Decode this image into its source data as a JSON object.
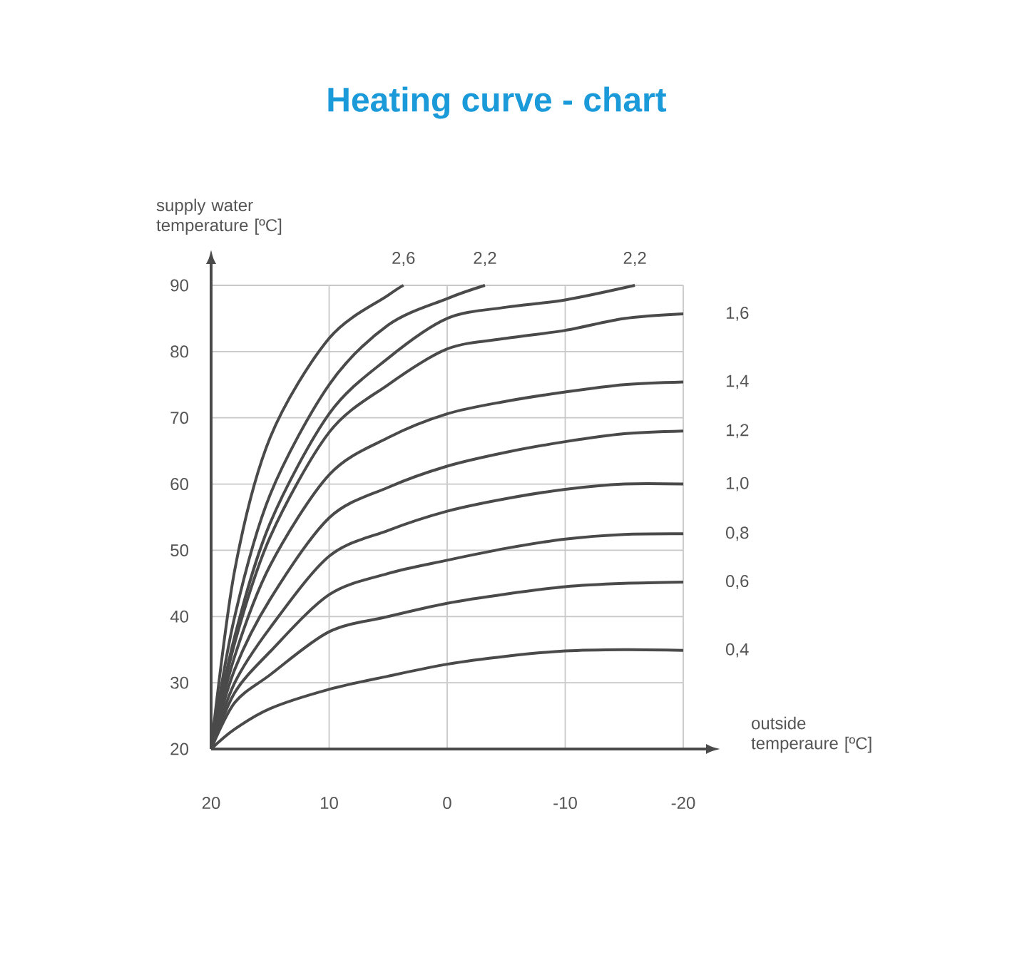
{
  "chart_data": {
    "type": "line",
    "title": "Heating curve - chart",
    "xlabel": "outside temperaure [ºC]",
    "ylabel": "supply water temperature [ºC]",
    "xlim": [
      20,
      -20
    ],
    "xticks": [
      20,
      10,
      0,
      -10,
      -20
    ],
    "ylim": [
      20,
      90
    ],
    "yticks": [
      20,
      30,
      40,
      50,
      60,
      70,
      80,
      90
    ],
    "grid": true,
    "marker": "none",
    "line_style": "solid",
    "series": [
      {
        "name": "2,6",
        "color": "#4a4a4a",
        "x": [
          20,
          18,
          15,
          10,
          5,
          3.7
        ],
        "values": [
          20,
          47,
          67,
          82,
          88.5,
          90
        ]
      },
      {
        "name": "2,2",
        "color": "#4a4a4a",
        "x": [
          20,
          18,
          15,
          10,
          5,
          0,
          -3.2
        ],
        "values": [
          20,
          40,
          58.4,
          75,
          84,
          88,
          90
        ]
      },
      {
        "name": "2,2",
        "color": "#4a4a4a",
        "x": [
          20,
          18,
          15,
          10,
          5,
          0,
          -5,
          -10,
          -15.9
        ],
        "values": [
          20,
          37,
          54.1,
          70.6,
          79,
          85,
          86.7,
          87.8,
          90
        ]
      },
      {
        "name": "1,6",
        "color": "#4a4a4a",
        "x": [
          20,
          18,
          15,
          10,
          5,
          0,
          -5,
          -10,
          -15,
          -20
        ],
        "values": [
          20,
          36,
          52,
          67.8,
          75,
          80.4,
          82,
          83.2,
          85,
          85.7
        ]
      },
      {
        "name": "1,4",
        "color": "#4a4a4a",
        "x": [
          20,
          18,
          15,
          10,
          5,
          0,
          -5,
          -10,
          -15,
          -20
        ],
        "values": [
          20,
          34,
          47.7,
          61.4,
          67,
          70.6,
          72.5,
          73.9,
          75,
          75.4
        ]
      },
      {
        "name": "1,2",
        "color": "#4a4a4a",
        "x": [
          20,
          18,
          15,
          10,
          5,
          0,
          -5,
          -10,
          -15,
          -20
        ],
        "values": [
          20,
          32,
          42.6,
          54.9,
          59.5,
          62.7,
          64.8,
          66.4,
          67.6,
          68
        ]
      },
      {
        "name": "1,0",
        "color": "#4a4a4a",
        "x": [
          20,
          18,
          15,
          10,
          5,
          0,
          -5,
          -10,
          -15,
          -20
        ],
        "values": [
          20,
          30,
          38.3,
          49.1,
          53,
          55.9,
          57.8,
          59.2,
          60,
          60
        ]
      },
      {
        "name": "0,8",
        "color": "#4a4a4a",
        "x": [
          20,
          18,
          15,
          10,
          5,
          0,
          -5,
          -10,
          -15,
          -20
        ],
        "values": [
          20,
          28.5,
          34.7,
          43.3,
          46.5,
          48.5,
          50.3,
          51.7,
          52.4,
          52.5
        ]
      },
      {
        "name": "0,6",
        "color": "#4a4a4a",
        "x": [
          20,
          18,
          15,
          10,
          5,
          0,
          -5,
          -10,
          -15,
          -20
        ],
        "values": [
          20,
          27,
          31.2,
          37.7,
          40,
          42,
          43.4,
          44.5,
          45,
          45.2
        ]
      },
      {
        "name": "0,4",
        "color": "#4a4a4a",
        "x": [
          20,
          18,
          15,
          10,
          5,
          0,
          -5,
          -10,
          -15,
          -20
        ],
        "values": [
          20,
          23,
          26.1,
          29,
          31,
          32.8,
          34,
          34.8,
          35,
          34.9
        ]
      }
    ]
  }
}
